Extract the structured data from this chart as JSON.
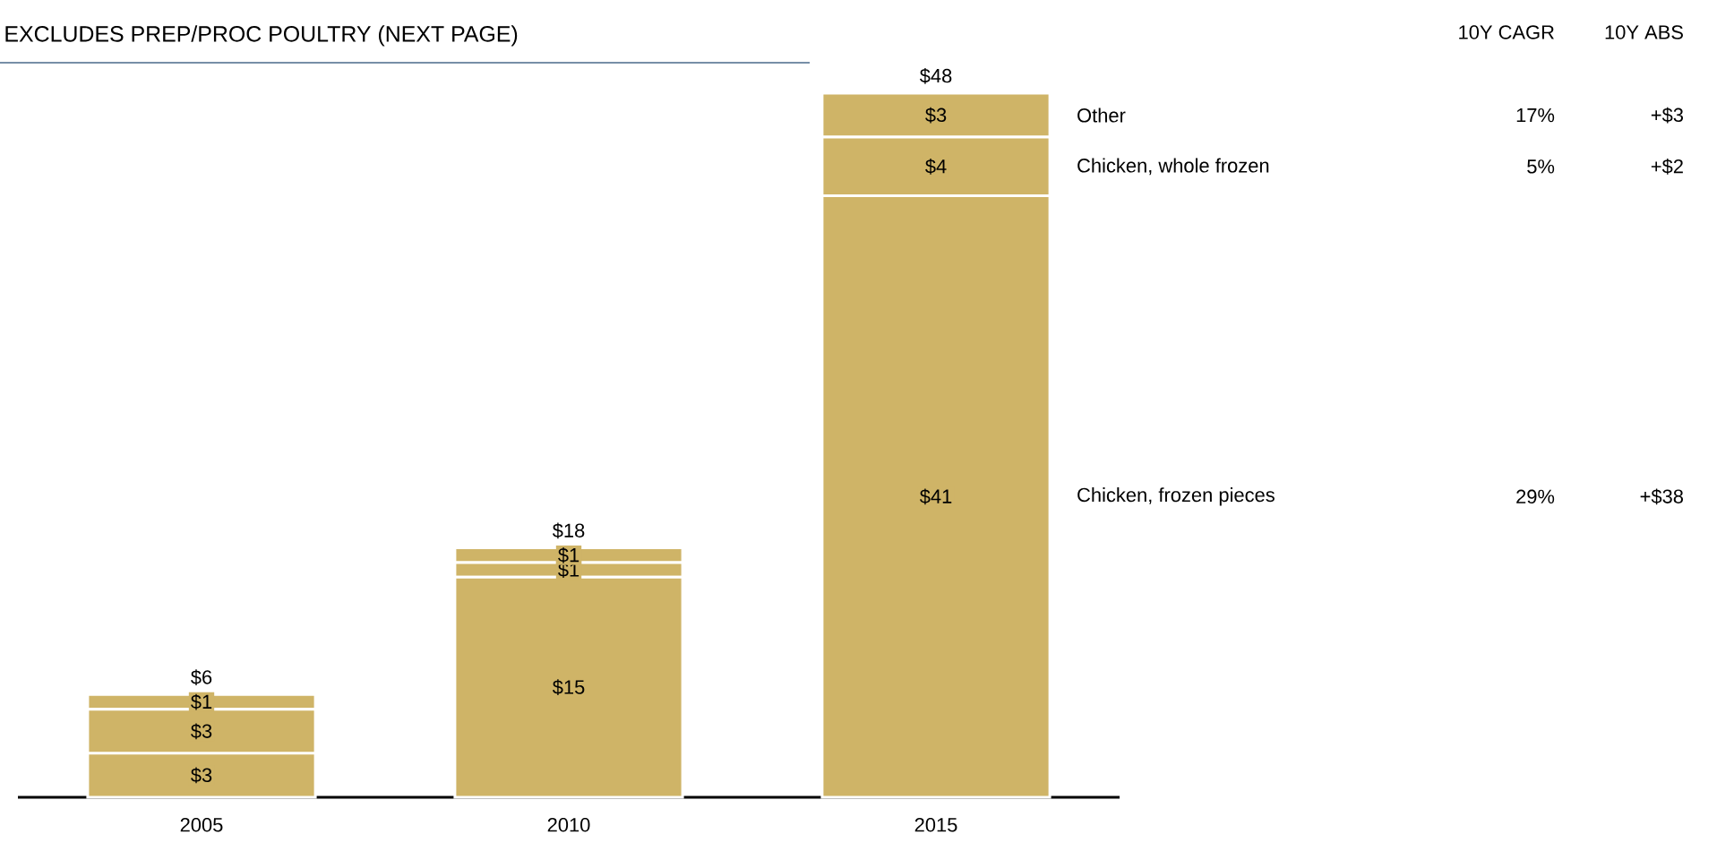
{
  "chart_data": {
    "type": "bar",
    "stacked": true,
    "title": "EXCLUDES PREP/PROC POULTRY (NEXT PAGE)",
    "categories": [
      "2005",
      "2010",
      "2015"
    ],
    "series": [
      {
        "name": "Chicken, frozen pieces",
        "color": "#cfb467",
        "values": [
          3,
          15,
          41
        ],
        "value_labels": [
          "$3",
          "$15",
          "$41"
        ]
      },
      {
        "name": "Chicken, whole frozen",
        "color": "#cfb467",
        "values": [
          3,
          1,
          4
        ],
        "value_labels": [
          "$3",
          "$1",
          "$4"
        ]
      },
      {
        "name": "Other",
        "color": "#cfb467",
        "values": [
          1,
          1,
          3
        ],
        "value_labels": [
          "$1",
          "$1",
          "$3"
        ]
      }
    ],
    "totals": [
      "$6",
      "$18",
      "$48"
    ],
    "annotations": [
      "10Y CAGR",
      "10Y ABS",
      "29%",
      "+$38",
      "5%",
      "+$2",
      "17%",
      "+$3"
    ]
  }
}
